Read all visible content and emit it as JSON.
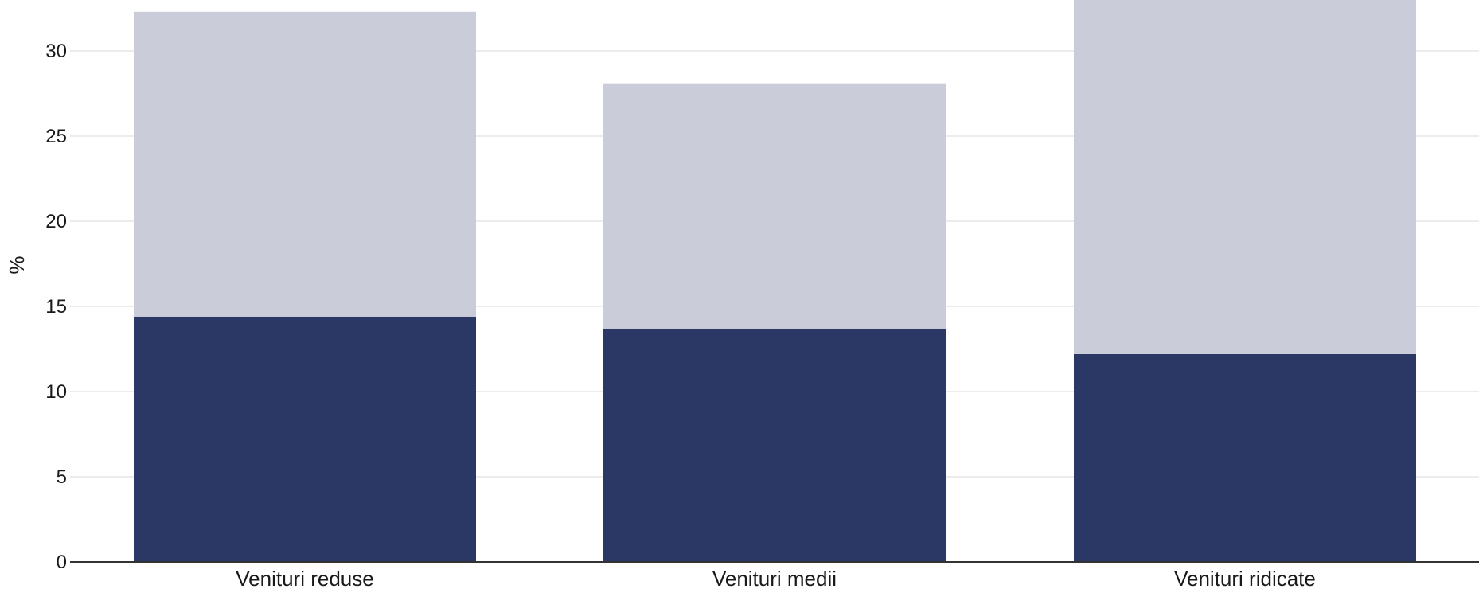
{
  "chart_data": {
    "type": "bar",
    "stacked": true,
    "categories": [
      "Venituri reduse",
      "Venituri medii",
      "Venituri ridicate"
    ],
    "series": [
      {
        "values": [
          14.4,
          13.7,
          12.2
        ],
        "color": "#2b3765"
      },
      {
        "values": [
          17.9,
          14.4,
          21.8
        ],
        "color": "#cacdd9"
      }
    ],
    "ylabel": "%",
    "xlabel": "",
    "ylim": [
      0,
      32.8
    ],
    "yticks": [
      0,
      5,
      10,
      15,
      20,
      25,
      30
    ],
    "grid": true,
    "colors": {
      "grid": "#e6e6e6",
      "axis": "#333333",
      "text": "#1a1a1a"
    }
  }
}
